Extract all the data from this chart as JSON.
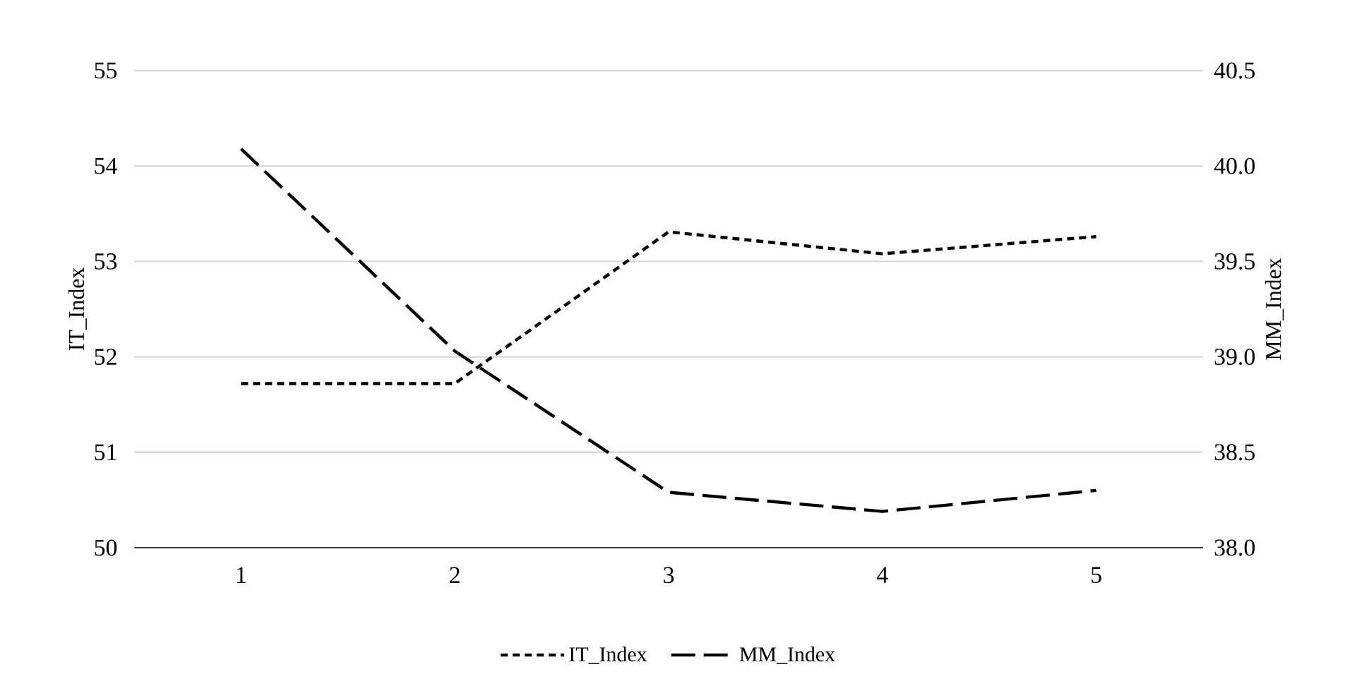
{
  "chart_data": {
    "type": "line",
    "ylabel": "IT_Index",
    "y2label": "MM_Index",
    "categories": [
      "1",
      "2",
      "3",
      "4",
      "5"
    ],
    "series": [
      {
        "name": "IT_Index",
        "color": "#000000",
        "line_style": "dotted",
        "values": [
          51.72,
          51.72,
          53.31,
          53.08,
          53.26
        ]
      },
      {
        "name": "MM_Index",
        "color": "#000000",
        "line_style": "dashed",
        "axis": "y2",
        "values": [
          40.09,
          39.03,
          38.29,
          38.19,
          38.3
        ]
      }
    ],
    "ylim": [
      50,
      55
    ],
    "yticks": [
      50,
      51,
      52,
      53,
      54,
      55
    ],
    "y2lim": [
      38.0,
      40.5
    ],
    "y2ticks": [
      {
        "value": 38.0,
        "label": "38.0"
      },
      {
        "value": 38.5,
        "label": "38.5"
      },
      {
        "value": 39.0,
        "label": "39.0"
      },
      {
        "value": 39.5,
        "label": "39.5"
      },
      {
        "value": 40.0,
        "label": "40.0"
      },
      {
        "value": 40.5,
        "label": "40.5"
      }
    ],
    "grid": "y",
    "legend": "bottom",
    "marker": "none"
  }
}
